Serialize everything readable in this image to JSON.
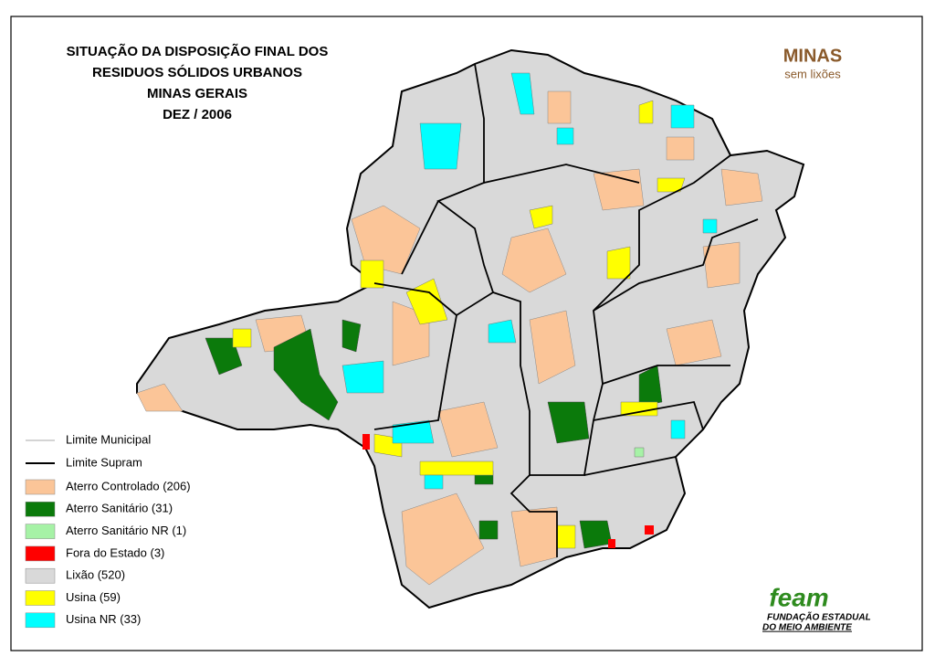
{
  "header": {
    "title_lines": [
      "SITUAÇÃO DA DISPOSIÇÃO FINAL DOS",
      "RESIDUOS SÓLIDOS URBANOS",
      "MINAS GERAIS",
      "DEZ / 2006"
    ]
  },
  "logo": {
    "brand": "MINAS",
    "tagline": "sem lixões"
  },
  "legend": {
    "lines": [
      {
        "label": "Limite Municipal",
        "color": "#aaaaaa"
      },
      {
        "label": "Limite Supram",
        "color": "#000000"
      }
    ],
    "categories": [
      {
        "label": "Aterro Controlado (206)",
        "color": "#fbc598"
      },
      {
        "label": "Aterro Sanitário (31)",
        "color": "#0b7a0b"
      },
      {
        "label": "Aterro Sanitário NR (1)",
        "color": "#a6f2a6"
      },
      {
        "label": "Fora do Estado (3)",
        "color": "#ff0000"
      },
      {
        "label": "Lixão (520)",
        "color": "#d9d9d9"
      },
      {
        "label": "Usina (59)",
        "color": "#ffff00"
      },
      {
        "label": "Usina NR (33)",
        "color": "#00ffff"
      }
    ]
  },
  "footer_logo": {
    "brand": "feam",
    "lines": [
      "FUNDAÇÃO ESTADUAL",
      "DO MEIO AMBIENTE"
    ]
  }
}
